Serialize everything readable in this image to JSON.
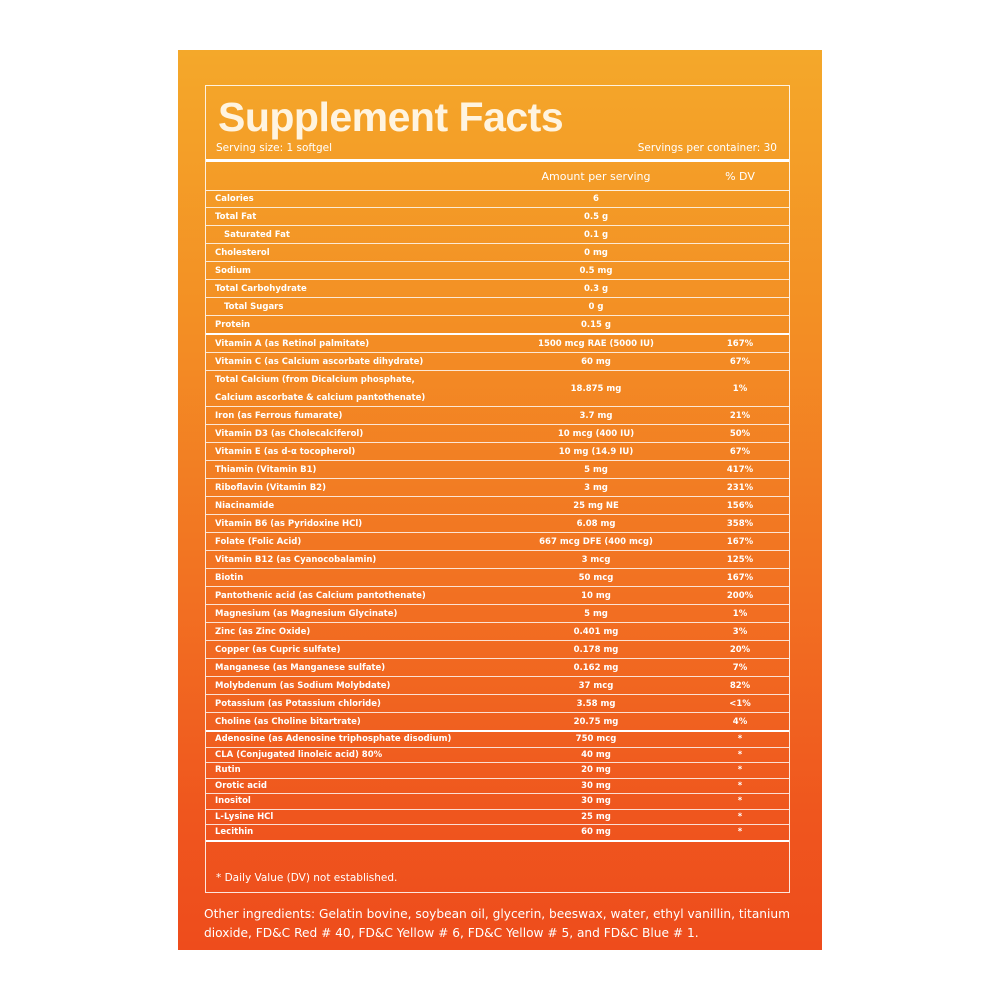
{
  "header": {
    "title": "Supplement Facts",
    "serving_size": "Serving size: 1 softgel",
    "servings_per_container": "Servings per container: 30"
  },
  "columns": {
    "amount": "Amount per serving",
    "dv": "% DV"
  },
  "sections": [
    {
      "row_height": 18,
      "rows": [
        {
          "name": "Calories",
          "amount": "6",
          "dv": ""
        },
        {
          "name": "Total Fat",
          "amount": "0.5 g",
          "dv": ""
        },
        {
          "name": "Saturated Fat",
          "amount": "0.1 g",
          "dv": "",
          "indent": true
        },
        {
          "name": "Cholesterol",
          "amount": "0 mg",
          "dv": ""
        },
        {
          "name": "Sodium",
          "amount": "0.5 mg",
          "dv": ""
        },
        {
          "name": "Total Carbohydrate",
          "amount": "0.3 g",
          "dv": ""
        },
        {
          "name": "Total Sugars",
          "amount": "0 g",
          "dv": "",
          "indent": true
        },
        {
          "name": "Protein",
          "amount": "0.15 g",
          "dv": ""
        }
      ]
    },
    {
      "row_height": 18,
      "rows": [
        {
          "name": "Vitamin A (as Retinol palmitate)",
          "amount": "1500 mcg RAE (5000 IU)",
          "dv": "167%"
        },
        {
          "name": "Vitamin C (as Calcium ascorbate dihydrate)",
          "amount": "60 mg",
          "dv": "67%"
        },
        {
          "name": [
            "Total Calcium (from Dicalcium phosphate,",
            "Calcium ascorbate & calcium pantothenate)"
          ],
          "amount": "18.875 mg",
          "dv": "1%"
        },
        {
          "name": "Iron (as Ferrous fumarate)",
          "amount": "3.7 mg",
          "dv": "21%"
        },
        {
          "name": "Vitamin D3 (as Cholecalciferol)",
          "amount": "10 mcg (400 IU)",
          "dv": "50%"
        },
        {
          "name": "Vitamin E (as d-α tocopherol)",
          "amount": "10 mg (14.9 IU)",
          "dv": "67%"
        },
        {
          "name": "Thiamin (Vitamin B1)",
          "amount": "5 mg",
          "dv": "417%"
        },
        {
          "name": "Riboflavin (Vitamin B2)",
          "amount": "3 mg",
          "dv": "231%"
        },
        {
          "name": "Niacinamide",
          "amount": "25 mg NE",
          "dv": "156%"
        },
        {
          "name": "Vitamin B6 (as Pyridoxine HCl)",
          "amount": "6.08 mg",
          "dv": "358%"
        },
        {
          "name": "Folate (Folic Acid)",
          "amount": "667 mcg DFE (400 mcg)",
          "dv": "167%"
        },
        {
          "name": "Vitamin B12 (as Cyanocobalamin)",
          "amount": "3 mcg",
          "dv": "125%"
        },
        {
          "name": "Biotin",
          "amount": "50 mcg",
          "dv": "167%"
        },
        {
          "name": "Pantothenic acid (as Calcium pantothenate)",
          "amount": "10 mg",
          "dv": "200%"
        },
        {
          "name": "Magnesium (as Magnesium Glycinate)",
          "amount": "5 mg",
          "dv": "1%"
        },
        {
          "name": "Zinc (as Zinc Oxide)",
          "amount": "0.401 mg",
          "dv": "3%"
        },
        {
          "name": "Copper (as Cupric sulfate)",
          "amount": "0.178 mg",
          "dv": "20%"
        },
        {
          "name": "Manganese (as Manganese sulfate)",
          "amount": "0.162 mg",
          "dv": "7%"
        },
        {
          "name": "Molybdenum (as Sodium Molybdate)",
          "amount": "37 mcg",
          "dv": "82%"
        },
        {
          "name": "Potassium (as Potassium chloride)",
          "amount": "3.58 mg",
          "dv": "<1%"
        },
        {
          "name": "Choline (as Choline bitartrate)",
          "amount": "20.75 mg",
          "dv": "4%"
        }
      ]
    },
    {
      "row_height": 15.5,
      "rows": [
        {
          "name": "Adenosine (as Adenosine triphosphate disodium)",
          "amount": "750 mcg",
          "dv": "*"
        },
        {
          "name": "CLA (Conjugated linoleic acid) 80%",
          "amount": "40 mg",
          "dv": "*"
        },
        {
          "name": "Rutin",
          "amount": "20 mg",
          "dv": "*"
        },
        {
          "name": "Orotic acid",
          "amount": "30 mg",
          "dv": "*"
        },
        {
          "name": "Inositol",
          "amount": "30 mg",
          "dv": "*"
        },
        {
          "name": "L-Lysine HCl",
          "amount": "25 mg",
          "dv": "*"
        },
        {
          "name": "Lecithin",
          "amount": "60 mg",
          "dv": "*"
        }
      ]
    }
  ],
  "footnote": "* Daily Value (DV) not established.",
  "other_ingredients": "Other ingredients: Gelatin bovine, soybean oil, glycerin, beeswax, water, ethyl vanillin, titanium dioxide, FD&C Red # 40, FD&C Yellow # 6, FD&C Yellow # 5, and FD&C Blue # 1."
}
